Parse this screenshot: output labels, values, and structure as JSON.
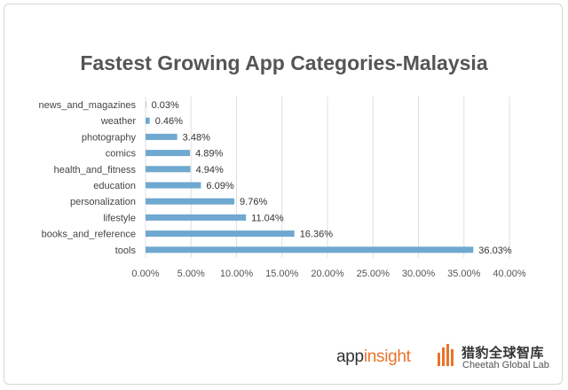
{
  "chart_data": {
    "type": "bar",
    "orientation": "horizontal",
    "title": "Fastest Growing App Categories-Malaysia",
    "categories": [
      "news_and_magazines",
      "weather",
      "photography",
      "comics",
      "health_and_fitness",
      "education",
      "personalization",
      "lifestyle",
      "books_and_reference",
      "tools"
    ],
    "values": [
      0.03,
      0.46,
      3.48,
      4.89,
      4.94,
      6.09,
      9.76,
      11.04,
      16.36,
      36.03
    ],
    "value_labels": [
      "0.03%",
      "0.46%",
      "3.48%",
      "4.89%",
      "4.94%",
      "6.09%",
      "9.76%",
      "11.04%",
      "16.36%",
      "36.03%"
    ],
    "xlim": [
      0,
      40
    ],
    "xticks": [
      0,
      5,
      10,
      15,
      20,
      25,
      30,
      35,
      40
    ],
    "xtick_labels": [
      "0.00%",
      "5.00%",
      "10.00%",
      "15.00%",
      "20.00%",
      "25.00%",
      "30.00%",
      "35.00%",
      "40.00%"
    ],
    "xlabel": "",
    "ylabel": "",
    "grid": "vertical",
    "legend": "none",
    "bar_color": "#6fa8d0"
  },
  "branding": {
    "appinsight_prefix": "app",
    "appinsight_suffix": "insight",
    "cheetah_cn": "猎豹全球智库",
    "cheetah_en": "Cheetah Global Lab",
    "cheetah_accent": "#e8742a",
    "cheetah_icon": "cheetah-bars-icon"
  }
}
